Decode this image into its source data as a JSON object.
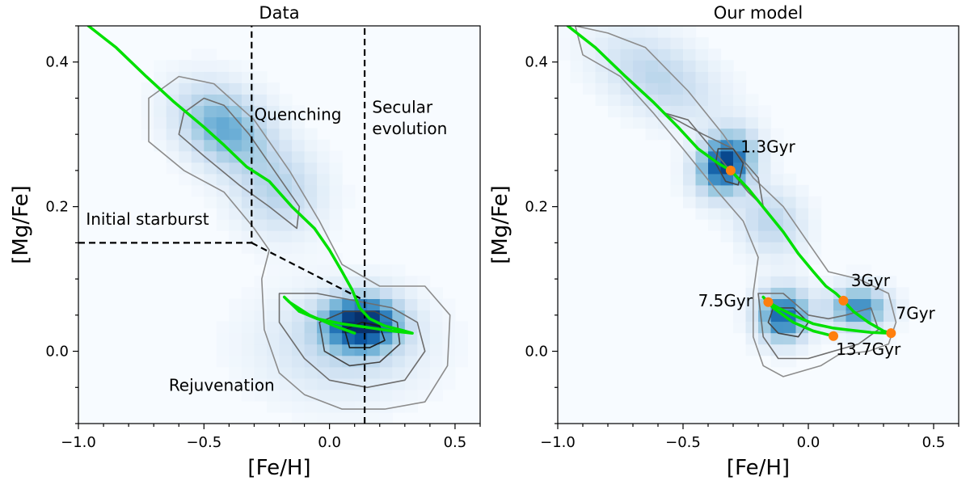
{
  "figure": {
    "panels": [
      "left",
      "right"
    ]
  },
  "chart_data": [
    {
      "type": "heatmap",
      "title": "Data",
      "xlabel": "[Fe/H]",
      "ylabel": "[Mg/Fe]",
      "xlim": [
        -1.0,
        0.6
      ],
      "ylim": [
        -0.1,
        0.45
      ],
      "xticks": [
        -1.0,
        -0.5,
        0.0,
        0.5
      ],
      "xtick_labels": [
        "−1.0",
        "−0.5",
        "0.0",
        "0.5"
      ],
      "yticks": [
        0.0,
        0.2,
        0.4
      ],
      "ytick_labels": [
        "0.0",
        "0.2",
        "0.4"
      ],
      "colormap": [
        "#f7fbff",
        "#08306b"
      ],
      "density_peaks": [
        {
          "x": -0.42,
          "y": 0.31,
          "sx": 0.14,
          "sy": 0.035,
          "w": 0.55,
          "rot": -0.6
        },
        {
          "x": -0.2,
          "y": 0.22,
          "sx": 0.12,
          "sy": 0.04,
          "w": 0.3,
          "rot": -0.6
        },
        {
          "x": 0.13,
          "y": 0.04,
          "sx": 0.1,
          "sy": 0.025,
          "w": 1.0,
          "rot": 0.0
        },
        {
          "x": 0.05,
          "y": 0.01,
          "sx": 0.22,
          "sy": 0.05,
          "w": 0.25,
          "rot": 0.0
        }
      ],
      "contours": [
        {
          "level": 0.25,
          "color": "#8c8c8c",
          "points": [
            [
              -0.72,
              0.35
            ],
            [
              -0.6,
              0.38
            ],
            [
              -0.46,
              0.37
            ],
            [
              -0.3,
              0.32
            ],
            [
              -0.16,
              0.25
            ],
            [
              -0.04,
              0.18
            ],
            [
              0.05,
              0.12
            ],
            [
              0.2,
              0.09
            ],
            [
              0.38,
              0.09
            ],
            [
              0.48,
              0.05
            ],
            [
              0.47,
              -0.02
            ],
            [
              0.38,
              -0.07
            ],
            [
              0.22,
              -0.08
            ],
            [
              0.05,
              -0.08
            ],
            [
              -0.1,
              -0.06
            ],
            [
              -0.2,
              -0.03
            ],
            [
              -0.26,
              0.03
            ],
            [
              -0.27,
              0.1
            ],
            [
              -0.24,
              0.14
            ],
            [
              -0.3,
              0.17
            ],
            [
              -0.42,
              0.22
            ],
            [
              -0.58,
              0.25
            ],
            [
              -0.72,
              0.29
            ]
          ]
        },
        {
          "level": 0.5,
          "color": "#6e6e6e",
          "points": [
            [
              -0.58,
              0.33
            ],
            [
              -0.5,
              0.35
            ],
            [
              -0.42,
              0.34
            ],
            [
              -0.32,
              0.3
            ],
            [
              -0.2,
              0.24
            ],
            [
              -0.12,
              0.2
            ],
            [
              -0.13,
              0.17
            ],
            [
              -0.24,
              0.2
            ],
            [
              -0.36,
              0.23
            ],
            [
              -0.5,
              0.27
            ],
            [
              -0.6,
              0.3
            ]
          ]
        },
        {
          "level": 0.5,
          "color": "#6e6e6e",
          "points": [
            [
              -0.2,
              0.08
            ],
            [
              -0.05,
              0.08
            ],
            [
              0.1,
              0.07
            ],
            [
              0.25,
              0.06
            ],
            [
              0.35,
              0.04
            ],
            [
              0.38,
              0.0
            ],
            [
              0.3,
              -0.04
            ],
            [
              0.15,
              -0.05
            ],
            [
              0.0,
              -0.04
            ],
            [
              -0.1,
              -0.01
            ],
            [
              -0.2,
              0.04
            ]
          ]
        },
        {
          "level": 0.75,
          "color": "#454545",
          "points": [
            [
              -0.04,
              0.04
            ],
            [
              0.06,
              0.055
            ],
            [
              0.18,
              0.055
            ],
            [
              0.27,
              0.04
            ],
            [
              0.28,
              0.01
            ],
            [
              0.2,
              -0.015
            ],
            [
              0.08,
              -0.02
            ],
            [
              -0.02,
              0.0
            ]
          ]
        },
        {
          "level": 0.9,
          "color": "#1e1e1e",
          "points": [
            [
              0.06,
              0.03
            ],
            [
              0.13,
              0.04
            ],
            [
              0.2,
              0.035
            ],
            [
              0.22,
              0.015
            ],
            [
              0.16,
              0.005
            ],
            [
              0.08,
              0.005
            ]
          ]
        }
      ],
      "model_track": {
        "color": "#00e000",
        "x": [
          -0.96,
          -0.85,
          -0.73,
          -0.62,
          -0.5,
          -0.42,
          -0.33,
          -0.24,
          -0.15,
          -0.06,
          0.0,
          0.05,
          0.09,
          0.12,
          0.16,
          0.22,
          0.3,
          0.33,
          0.25,
          0.15,
          0.05,
          -0.05,
          -0.12,
          -0.18,
          -0.16,
          -0.08,
          0.02,
          0.1
        ],
        "y": [
          0.45,
          0.42,
          0.38,
          0.345,
          0.31,
          0.285,
          0.255,
          0.235,
          0.2,
          0.17,
          0.14,
          0.11,
          0.085,
          0.06,
          0.045,
          0.035,
          0.028,
          0.025,
          0.028,
          0.033,
          0.038,
          0.045,
          0.055,
          0.075,
          0.068,
          0.05,
          0.035,
          0.025
        ]
      },
      "divider_lines": [
        {
          "style": "dashed",
          "points": [
            [
              -1.0,
              0.15
            ],
            [
              -0.31,
              0.15
            ],
            [
              -0.31,
              0.45
            ]
          ]
        },
        {
          "style": "dashed",
          "points": [
            [
              -0.31,
              0.15
            ],
            [
              0.14,
              0.07
            ]
          ]
        },
        {
          "style": "dashed",
          "points": [
            [
              0.14,
              -0.1
            ],
            [
              0.14,
              0.45
            ]
          ]
        }
      ],
      "annotations": [
        {
          "text": "Quenching",
          "x": -0.3,
          "y": 0.32
        },
        {
          "text": "Secular",
          "x": 0.17,
          "y": 0.33
        },
        {
          "text": "evolution",
          "x": 0.17,
          "y": 0.3
        },
        {
          "text": "Initial starburst",
          "x": -0.97,
          "y": 0.175
        },
        {
          "text": "Rejuvenation",
          "x": -0.64,
          "y": -0.055
        }
      ],
      "markers": []
    },
    {
      "type": "heatmap",
      "title": "Our model",
      "xlabel": "[Fe/H]",
      "ylabel": "[Mg/Fe]",
      "xlim": [
        -1.0,
        0.6
      ],
      "ylim": [
        -0.1,
        0.45
      ],
      "xticks": [
        -1.0,
        -0.5,
        0.0,
        0.5
      ],
      "xtick_labels": [
        "−1.0",
        "−0.5",
        "0.0",
        "0.5"
      ],
      "yticks": [
        0.0,
        0.2,
        0.4
      ],
      "ytick_labels": [
        "0.0",
        "0.2",
        "0.4"
      ],
      "colormap": [
        "#f7fbff",
        "#08306b"
      ],
      "density_peaks": [
        {
          "x": -0.33,
          "y": 0.26,
          "sx": 0.07,
          "sy": 0.03,
          "w": 1.0,
          "rot": -0.6
        },
        {
          "x": -0.6,
          "y": 0.38,
          "sx": 0.18,
          "sy": 0.035,
          "w": 0.3,
          "rot": -0.5
        },
        {
          "x": -0.15,
          "y": 0.18,
          "sx": 0.1,
          "sy": 0.03,
          "w": 0.3,
          "rot": -0.8
        },
        {
          "x": -0.1,
          "y": 0.05,
          "sx": 0.07,
          "sy": 0.025,
          "w": 0.85,
          "rot": -0.3
        },
        {
          "x": 0.2,
          "y": 0.06,
          "sx": 0.08,
          "sy": 0.02,
          "w": 0.7,
          "rot": 0.0
        }
      ],
      "contours": [
        {
          "level": 0.25,
          "color": "#8c8c8c",
          "points": [
            [
              -0.93,
              0.45
            ],
            [
              -0.8,
              0.44
            ],
            [
              -0.65,
              0.42
            ],
            [
              -0.48,
              0.36
            ],
            [
              -0.34,
              0.3
            ],
            [
              -0.22,
              0.24
            ],
            [
              -0.1,
              0.2
            ],
            [
              0.0,
              0.15
            ],
            [
              0.08,
              0.11
            ],
            [
              0.2,
              0.1
            ],
            [
              0.32,
              0.08
            ],
            [
              0.35,
              0.04
            ],
            [
              0.32,
              0.01
            ],
            [
              0.24,
              0.0
            ],
            [
              0.12,
              -0.005
            ],
            [
              0.05,
              -0.02
            ],
            [
              -0.1,
              -0.035
            ],
            [
              -0.18,
              -0.02
            ],
            [
              -0.22,
              0.02
            ],
            [
              -0.22,
              0.08
            ],
            [
              -0.2,
              0.13
            ],
            [
              -0.26,
              0.18
            ],
            [
              -0.36,
              0.22
            ],
            [
              -0.5,
              0.28
            ],
            [
              -0.62,
              0.33
            ],
            [
              -0.75,
              0.38
            ],
            [
              -0.9,
              0.41
            ]
          ]
        },
        {
          "level": 0.5,
          "color": "#6e6e6e",
          "points": [
            [
              -0.58,
              0.33
            ],
            [
              -0.48,
              0.32
            ],
            [
              -0.36,
              0.27
            ],
            [
              -0.24,
              0.22
            ],
            [
              -0.18,
              0.2
            ],
            [
              -0.2,
              0.24
            ],
            [
              -0.3,
              0.28
            ],
            [
              -0.42,
              0.3
            ]
          ]
        },
        {
          "level": 0.5,
          "color": "#6e6e6e",
          "points": [
            [
              -0.2,
              0.08
            ],
            [
              -0.1,
              0.08
            ],
            [
              0.0,
              0.05
            ],
            [
              0.08,
              0.045
            ],
            [
              0.15,
              0.05
            ],
            [
              0.25,
              0.06
            ],
            [
              0.28,
              0.03
            ],
            [
              0.2,
              0.01
            ],
            [
              0.1,
              0.0
            ],
            [
              0.0,
              -0.01
            ],
            [
              -0.12,
              -0.01
            ],
            [
              -0.18,
              0.02
            ]
          ]
        },
        {
          "level": 0.75,
          "color": "#454545",
          "points": [
            [
              -0.36,
              0.28
            ],
            [
              -0.3,
              0.28
            ],
            [
              -0.26,
              0.26
            ],
            [
              -0.28,
              0.23
            ],
            [
              -0.33,
              0.235
            ],
            [
              -0.37,
              0.26
            ]
          ]
        },
        {
          "level": 0.75,
          "color": "#454545",
          "points": [
            [
              -0.14,
              0.06
            ],
            [
              -0.06,
              0.06
            ],
            [
              0.0,
              0.04
            ],
            [
              -0.04,
              0.02
            ],
            [
              -0.12,
              0.025
            ],
            [
              -0.16,
              0.04
            ]
          ]
        }
      ],
      "model_track": {
        "color": "#00e000",
        "x": [
          -0.96,
          -0.85,
          -0.73,
          -0.62,
          -0.52,
          -0.44,
          -0.36,
          -0.31,
          -0.24,
          -0.17,
          -0.1,
          -0.04,
          0.02,
          0.07,
          0.11,
          0.14,
          0.18,
          0.24,
          0.3,
          0.33,
          0.25,
          0.15,
          0.1,
          0.02,
          -0.06,
          -0.12,
          -0.16,
          -0.18,
          -0.14,
          -0.06,
          0.02,
          0.1
        ],
        "y": [
          0.45,
          0.42,
          0.38,
          0.345,
          0.31,
          0.28,
          0.26,
          0.25,
          0.225,
          0.195,
          0.165,
          0.135,
          0.11,
          0.09,
          0.08,
          0.07,
          0.055,
          0.04,
          0.028,
          0.025,
          0.026,
          0.03,
          0.032,
          0.038,
          0.05,
          0.06,
          0.068,
          0.075,
          0.06,
          0.04,
          0.028,
          0.021
        ]
      },
      "divider_lines": [],
      "annotations": [],
      "markers": [
        {
          "label": "1.3Gyr",
          "x": -0.31,
          "y": 0.25,
          "color": "#ff7f0e",
          "lx": -0.27,
          "ly": 0.275
        },
        {
          "label": "3Gyr",
          "x": 0.14,
          "y": 0.07,
          "color": "#ff7f0e",
          "lx": 0.17,
          "ly": 0.09
        },
        {
          "label": "7.5Gyr",
          "x": -0.16,
          "y": 0.068,
          "color": "#ff7f0e",
          "lx": -0.44,
          "ly": 0.062
        },
        {
          "label": "7Gyr",
          "x": 0.33,
          "y": 0.025,
          "color": "#ff7f0e",
          "lx": 0.35,
          "ly": 0.045
        },
        {
          "label": "13.7Gyr",
          "x": 0.1,
          "y": 0.021,
          "color": "#ff7f0e",
          "lx": 0.11,
          "ly": -0.005
        }
      ]
    }
  ]
}
